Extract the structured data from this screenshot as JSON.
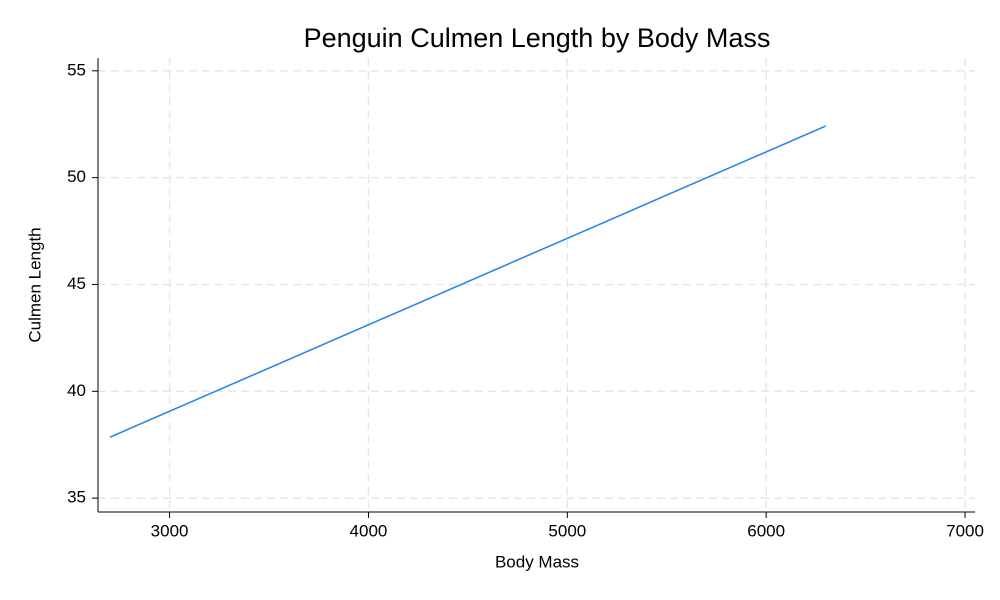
{
  "chart_data": {
    "type": "line",
    "title": "Penguin Culmen Length by Body Mass",
    "x_label": "Body Mass",
    "y_label": "Culmen Length",
    "x": [
      2700,
      6300
    ],
    "series": [
      {
        "color": "#2c8ae6",
        "values": [
          37.85,
          52.42
        ]
      }
    ],
    "xlim": [
      2640,
      7050
    ],
    "ylim": [
      34.35,
      55.6
    ],
    "xticks": [
      3000,
      4000,
      5000,
      6000,
      7000
    ],
    "yticks": [
      35,
      40,
      45,
      50,
      55
    ],
    "grid": true
  }
}
